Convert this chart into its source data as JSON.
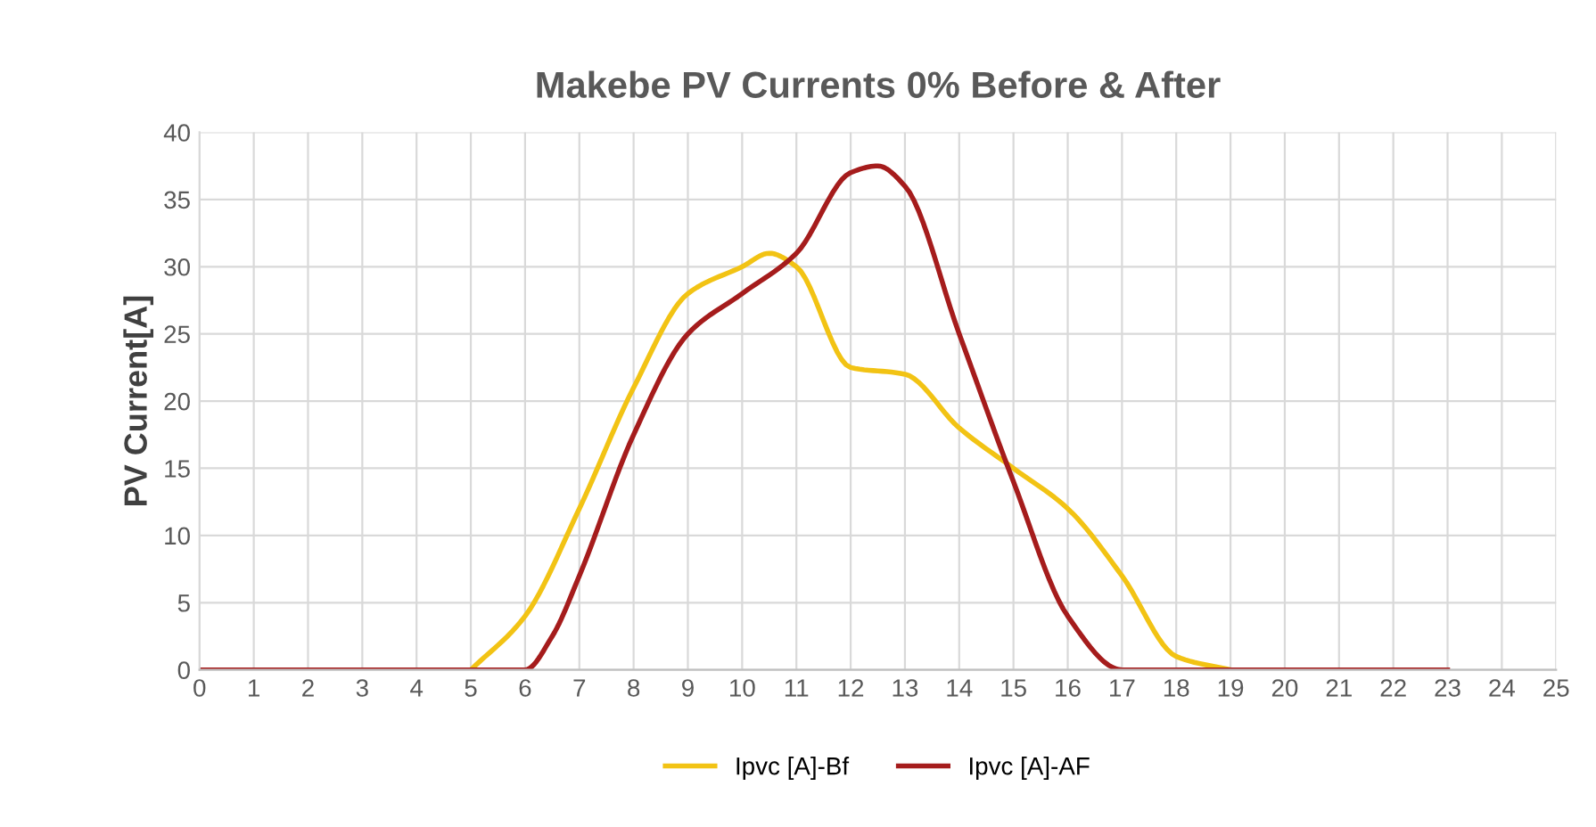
{
  "chart_data": {
    "type": "line",
    "title": "Makebe PV Currents 0% Before & After",
    "ylabel": "PV Current[A]",
    "series": [
      {
        "name": "Ipvc [A]-Bf",
        "color": "#f2c314",
        "x": [
          5,
          6,
          7,
          8,
          9,
          10,
          10.5,
          11,
          12,
          13,
          14,
          15,
          16,
          17,
          18,
          19
        ],
        "values": [
          0,
          4,
          12,
          21,
          28,
          30,
          31,
          30,
          22.5,
          22,
          18,
          15,
          12,
          7,
          1,
          0
        ]
      },
      {
        "name": "Ipvc [A]-AF",
        "color": "#a51c1c",
        "x": [
          0,
          1,
          2,
          3,
          4,
          5,
          6,
          6.5,
          7,
          8,
          9,
          10,
          11,
          12,
          12.5,
          13,
          14,
          15,
          16,
          17,
          18,
          19,
          20,
          21,
          22,
          23
        ],
        "values": [
          0,
          0,
          0,
          0,
          0,
          0,
          0,
          2.5,
          7,
          17.5,
          25,
          28,
          31,
          37,
          37.5,
          36,
          25,
          14,
          4,
          0,
          0,
          0,
          0,
          0,
          0,
          0
        ]
      }
    ],
    "xlim": [
      0,
      25
    ],
    "xticks": [
      0,
      1,
      2,
      3,
      4,
      5,
      6,
      7,
      8,
      9,
      10,
      11,
      12,
      13,
      14,
      15,
      16,
      17,
      18,
      19,
      20,
      21,
      22,
      23,
      24,
      25
    ],
    "ylim": [
      0,
      40
    ],
    "yticks": [
      0,
      5,
      10,
      15,
      20,
      25,
      30,
      35,
      40
    ],
    "grid": true,
    "legend": "bottom",
    "marker": "none",
    "line_style": "solid"
  }
}
